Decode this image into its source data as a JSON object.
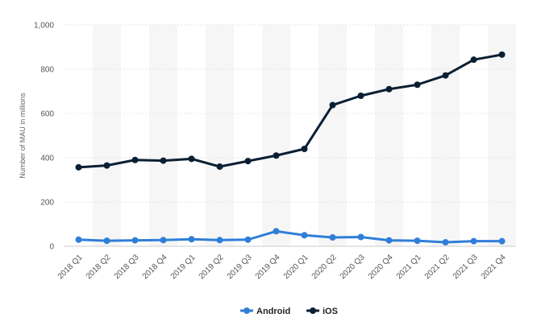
{
  "chart_data": {
    "type": "line",
    "title": "",
    "xlabel": "",
    "ylabel": "Number of MAU in millions",
    "ylim": [
      0,
      1000
    ],
    "yticks": [
      0,
      200,
      400,
      600,
      800,
      1000
    ],
    "ytick_labels": [
      "0",
      "200",
      "400",
      "600",
      "800",
      "1,000"
    ],
    "categories": [
      "2018 Q1",
      "2018 Q2",
      "2018 Q3",
      "2018 Q4",
      "2019 Q1",
      "2019 Q2",
      "2019 Q3",
      "2019 Q4",
      "2020 Q1",
      "2020 Q2",
      "2020 Q3",
      "2020 Q4",
      "2021 Q1",
      "2021 Q2",
      "2021 Q3",
      "2021 Q4"
    ],
    "series": [
      {
        "name": "Android",
        "color": "#2f7ed8",
        "values": [
          30,
          25,
          27,
          28,
          32,
          28,
          30,
          68,
          50,
          40,
          42,
          27,
          25,
          18,
          23,
          23
        ]
      },
      {
        "name": "iOS",
        "color": "#0b1f33",
        "values": [
          357,
          365,
          390,
          387,
          395,
          360,
          385,
          410,
          440,
          638,
          680,
          710,
          730,
          772,
          843,
          866
        ]
      }
    ],
    "grid": true,
    "legend_position": "bottom-center"
  }
}
